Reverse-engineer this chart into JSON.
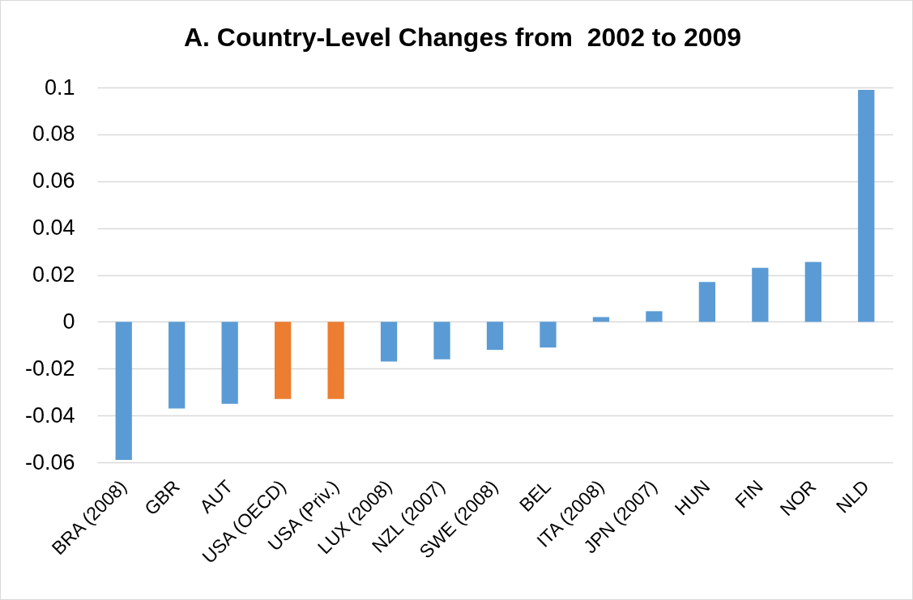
{
  "chart_data": {
    "type": "bar",
    "title": "A. Country-Level Changes from  2002 to 2009",
    "categories": [
      "BRA (2008)",
      "GBR",
      "AUT",
      "USA (OECD)",
      "USA (Priv.)",
      "LUX (2008)",
      "NZL (2007)",
      "SWE (2008)",
      "BEL",
      "ITA (2008)",
      "JPN (2007)",
      "HUN",
      "FIN",
      "NOR",
      "NLD"
    ],
    "values": [
      -0.059,
      -0.037,
      -0.035,
      -0.033,
      -0.033,
      -0.017,
      -0.016,
      -0.012,
      -0.011,
      0.002,
      0.0045,
      0.017,
      0.023,
      0.0255,
      0.099
    ],
    "colors": [
      "#5b9bd5",
      "#5b9bd5",
      "#5b9bd5",
      "#ed7d31",
      "#ed7d31",
      "#5b9bd5",
      "#5b9bd5",
      "#5b9bd5",
      "#5b9bd5",
      "#5b9bd5",
      "#5b9bd5",
      "#5b9bd5",
      "#5b9bd5",
      "#5b9bd5",
      "#5b9bd5"
    ],
    "ylim": [
      -0.06,
      0.1
    ],
    "yticks": [
      -0.06,
      -0.04,
      -0.02,
      0,
      0.02,
      0.04,
      0.06,
      0.08,
      0.1
    ],
    "grid": true
  }
}
